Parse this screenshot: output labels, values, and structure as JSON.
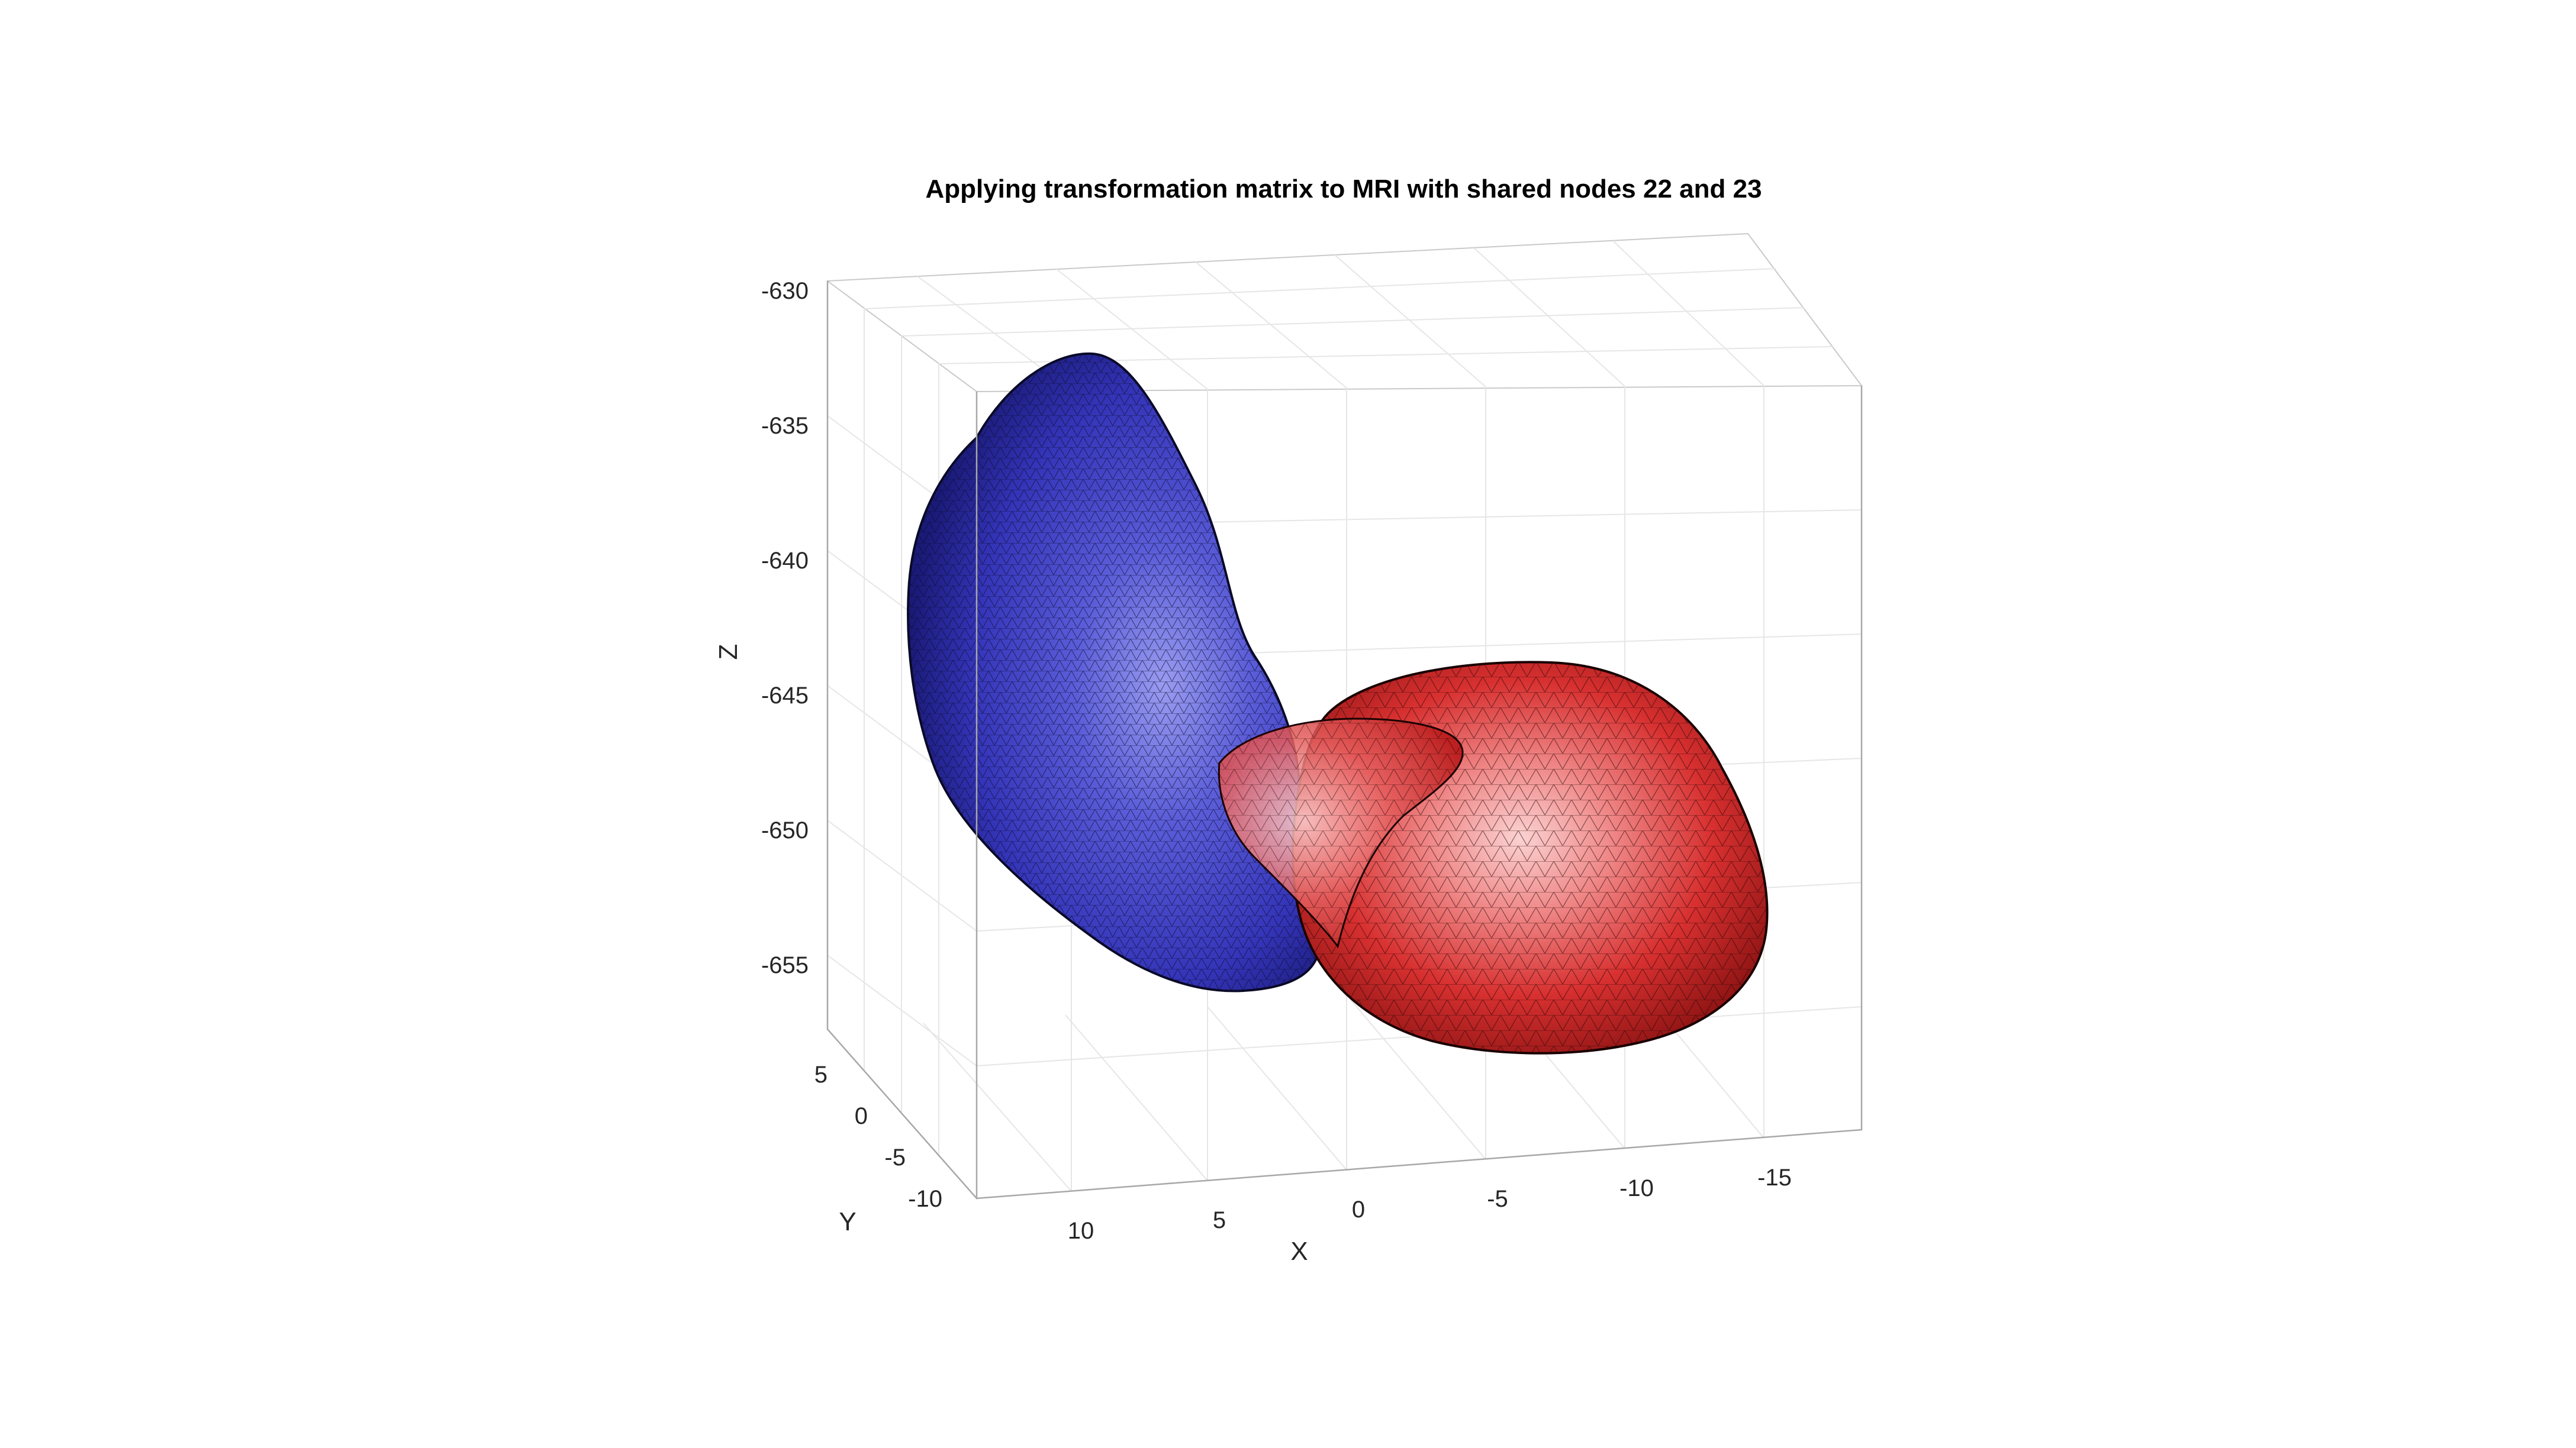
{
  "chart_data": {
    "type": "surface-3d",
    "title": "Applying transformation matrix to MRI with shared nodes 22 and 23",
    "xlabel": "X",
    "ylabel": "Y",
    "zlabel": "Z",
    "x_ticks": [
      "10",
      "5",
      "0",
      "-5",
      "-10",
      "-15"
    ],
    "y_ticks": [
      "5",
      "0",
      "-5",
      "-10"
    ],
    "z_ticks": [
      "-630",
      "-635",
      "-640",
      "-645",
      "-650",
      "-655"
    ],
    "grid": true,
    "box": true,
    "series": [
      {
        "color": "#3a3ac8",
        "shape": "triangulated mesh surface"
      },
      {
        "color": "#d81e1e",
        "shape": "triangulated mesh surface"
      }
    ]
  }
}
